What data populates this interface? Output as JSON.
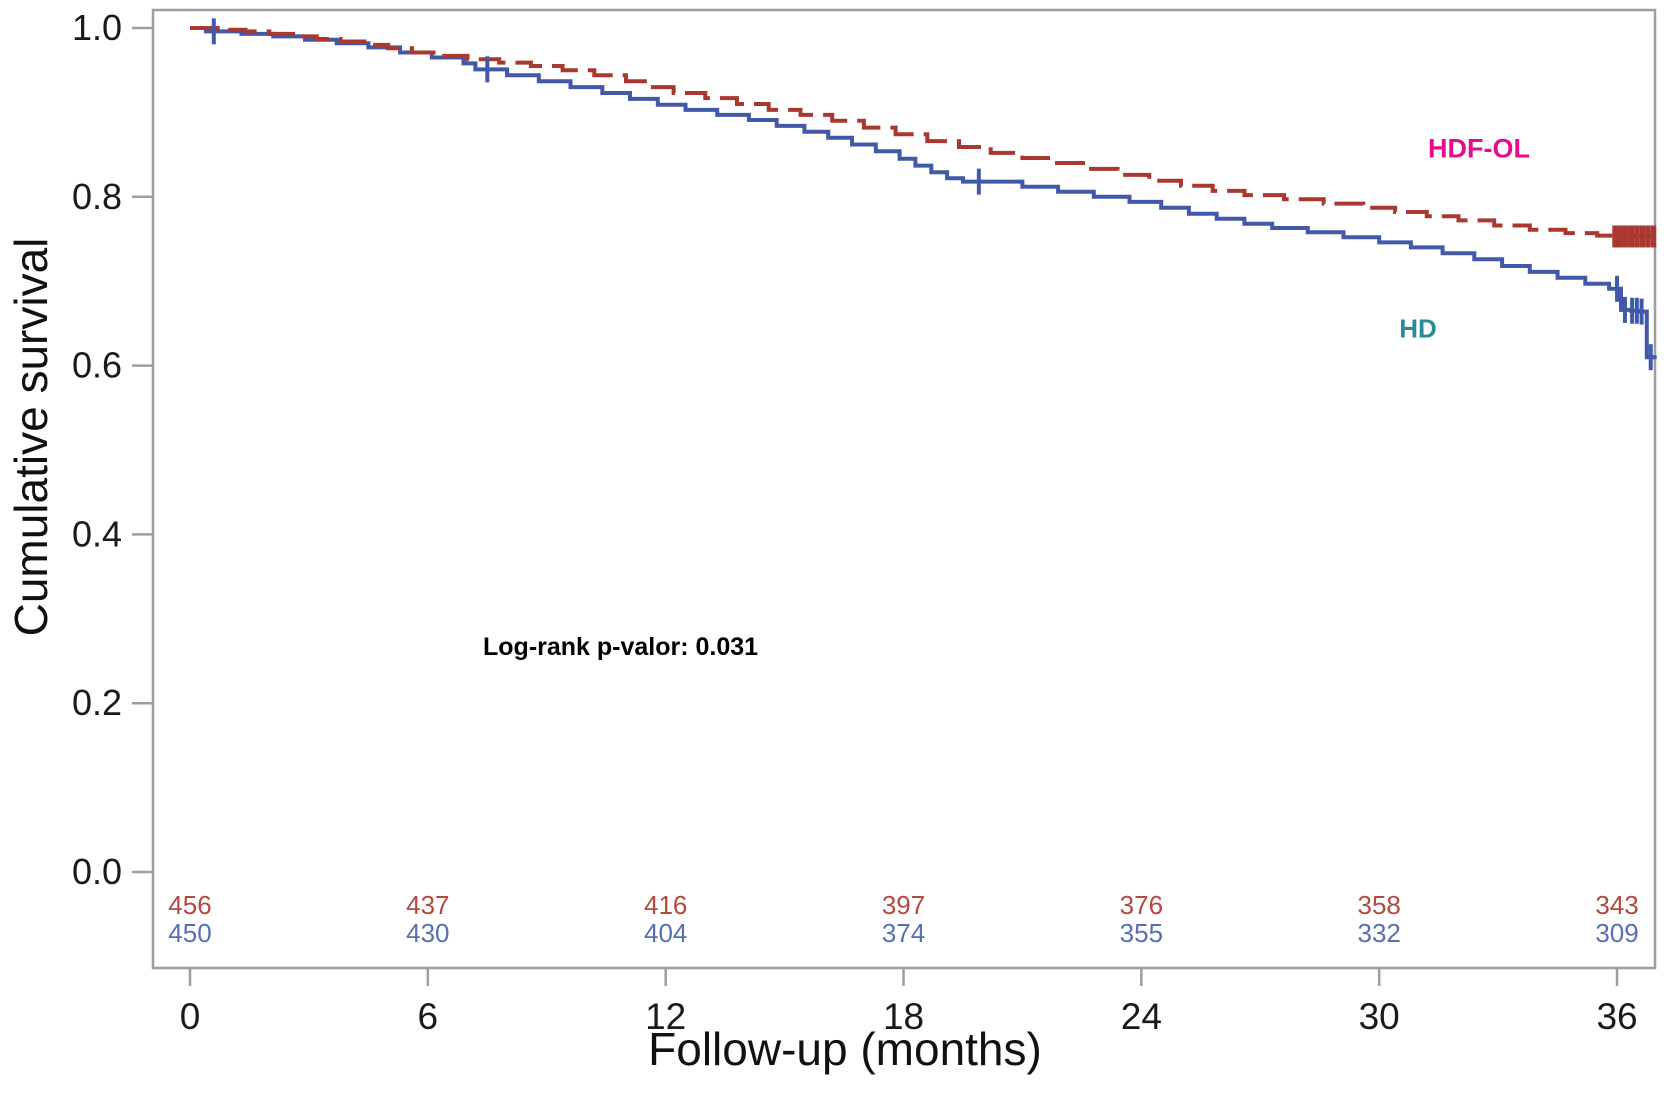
{
  "chart_data": {
    "type": "line",
    "subtype": "kaplan-meier-step",
    "title": "",
    "xlabel": "Follow-up (months)",
    "ylabel": "Cumulative survival",
    "annotation": "Log-rank p-valor: 0.031",
    "xlim": [
      0,
      37.0
    ],
    "ylim": [
      0.0,
      1.0
    ],
    "grid": false,
    "axis_color": "#9E9E9E",
    "tick_label_color": "#1A1A1A",
    "x_ticks": [
      0,
      6,
      12,
      18,
      24,
      30,
      36
    ],
    "y_ticks": [
      {
        "label": "1.0",
        "value": 1.0
      },
      {
        "label": "0.8",
        "value": 0.8
      },
      {
        "label": "0.6",
        "value": 0.6
      },
      {
        "label": "0.4",
        "value": 0.4
      },
      {
        "label": "0.2",
        "value": 0.2
      },
      {
        "label": "0.0",
        "value": 0.0
      }
    ],
    "series": [
      {
        "name": "HDF-OL",
        "style": "dashed",
        "line_color": "#A93830",
        "label_color": "#E60C8E",
        "steps": [
          [
            0,
            1.0
          ],
          [
            0.7,
            0.998
          ],
          [
            1.4,
            0.996
          ],
          [
            2.0,
            0.993
          ],
          [
            2.6,
            0.99
          ],
          [
            3.2,
            0.987
          ],
          [
            3.8,
            0.984
          ],
          [
            4.4,
            0.98
          ],
          [
            5.0,
            0.976
          ],
          [
            5.6,
            0.971
          ],
          [
            6.2,
            0.967
          ],
          [
            7.0,
            0.963
          ],
          [
            7.8,
            0.959
          ],
          [
            8.6,
            0.955
          ],
          [
            9.4,
            0.95
          ],
          [
            10.2,
            0.944
          ],
          [
            11.0,
            0.937
          ],
          [
            11.6,
            0.93
          ],
          [
            12.2,
            0.923
          ],
          [
            13.0,
            0.917
          ],
          [
            13.8,
            0.91
          ],
          [
            14.6,
            0.903
          ],
          [
            15.4,
            0.897
          ],
          [
            16.2,
            0.89
          ],
          [
            17.0,
            0.882
          ],
          [
            17.8,
            0.874
          ],
          [
            18.6,
            0.866
          ],
          [
            19.4,
            0.859
          ],
          [
            20.2,
            0.852
          ],
          [
            21.0,
            0.846
          ],
          [
            21.8,
            0.84
          ],
          [
            22.6,
            0.833
          ],
          [
            23.4,
            0.826
          ],
          [
            24.2,
            0.819
          ],
          [
            25.0,
            0.813
          ],
          [
            25.8,
            0.807
          ],
          [
            26.6,
            0.802
          ],
          [
            27.6,
            0.797
          ],
          [
            28.6,
            0.792
          ],
          [
            29.6,
            0.787
          ],
          [
            30.4,
            0.782
          ],
          [
            31.2,
            0.777
          ],
          [
            32.0,
            0.772
          ],
          [
            32.9,
            0.766
          ],
          [
            33.8,
            0.761
          ],
          [
            34.7,
            0.757
          ],
          [
            35.5,
            0.754
          ],
          [
            35.9,
            0.753
          ],
          [
            37.0,
            0.753
          ]
        ],
        "censor_marks": [
          [
            35.95,
            0.753
          ],
          [
            36.08,
            0.753
          ],
          [
            36.22,
            0.753
          ],
          [
            36.36,
            0.753
          ],
          [
            36.5,
            0.753
          ],
          [
            36.64,
            0.753
          ],
          [
            36.78,
            0.753
          ],
          [
            36.92,
            0.753
          ]
        ]
      },
      {
        "name": "HD",
        "style": "solid",
        "line_color": "#4159A8",
        "label_color": "#2A8A96",
        "steps": [
          [
            0,
            1.0
          ],
          [
            0.4,
            0.996
          ],
          [
            1.3,
            0.993
          ],
          [
            2.1,
            0.99
          ],
          [
            2.9,
            0.986
          ],
          [
            3.7,
            0.982
          ],
          [
            4.5,
            0.977
          ],
          [
            5.3,
            0.971
          ],
          [
            6.1,
            0.965
          ],
          [
            6.9,
            0.958
          ],
          [
            7.2,
            0.951
          ],
          [
            8.0,
            0.944
          ],
          [
            8.8,
            0.937
          ],
          [
            9.6,
            0.93
          ],
          [
            10.4,
            0.923
          ],
          [
            11.1,
            0.916
          ],
          [
            11.8,
            0.909
          ],
          [
            12.5,
            0.903
          ],
          [
            13.3,
            0.897
          ],
          [
            14.1,
            0.891
          ],
          [
            14.8,
            0.884
          ],
          [
            15.5,
            0.877
          ],
          [
            16.1,
            0.87
          ],
          [
            16.7,
            0.862
          ],
          [
            17.3,
            0.854
          ],
          [
            17.9,
            0.845
          ],
          [
            18.3,
            0.837
          ],
          [
            18.7,
            0.829
          ],
          [
            19.1,
            0.822
          ],
          [
            19.5,
            0.818
          ],
          [
            21.0,
            0.812
          ],
          [
            21.9,
            0.806
          ],
          [
            22.8,
            0.8
          ],
          [
            23.7,
            0.794
          ],
          [
            24.5,
            0.787
          ],
          [
            25.2,
            0.78
          ],
          [
            25.9,
            0.774
          ],
          [
            26.6,
            0.768
          ],
          [
            27.3,
            0.763
          ],
          [
            28.2,
            0.758
          ],
          [
            29.1,
            0.752
          ],
          [
            30.0,
            0.746
          ],
          [
            30.8,
            0.74
          ],
          [
            31.6,
            0.733
          ],
          [
            32.4,
            0.726
          ],
          [
            33.1,
            0.718
          ],
          [
            33.8,
            0.711
          ],
          [
            34.5,
            0.704
          ],
          [
            35.2,
            0.697
          ],
          [
            35.8,
            0.691
          ],
          [
            36.1,
            0.666
          ],
          [
            36.35,
            0.665
          ],
          [
            36.55,
            0.664
          ],
          [
            36.75,
            0.61
          ],
          [
            37.0,
            0.61
          ]
        ],
        "censor_marks": [
          [
            0.6,
            0.996
          ],
          [
            7.5,
            0.951
          ],
          [
            19.9,
            0.818
          ],
          [
            36.0,
            0.691
          ],
          [
            36.2,
            0.666
          ],
          [
            36.38,
            0.665
          ],
          [
            36.5,
            0.665
          ],
          [
            36.62,
            0.664
          ],
          [
            36.85,
            0.61
          ]
        ]
      }
    ],
    "at_risk": {
      "times": [
        0,
        6,
        12,
        18,
        24,
        30,
        36
      ],
      "rows": [
        {
          "series": "HDF-OL",
          "color": "#B4493F",
          "values": [
            456,
            437,
            416,
            397,
            376,
            358,
            343
          ]
        },
        {
          "series": "HD",
          "color": "#5570B5",
          "values": [
            450,
            430,
            404,
            374,
            355,
            332,
            309
          ]
        }
      ]
    }
  }
}
